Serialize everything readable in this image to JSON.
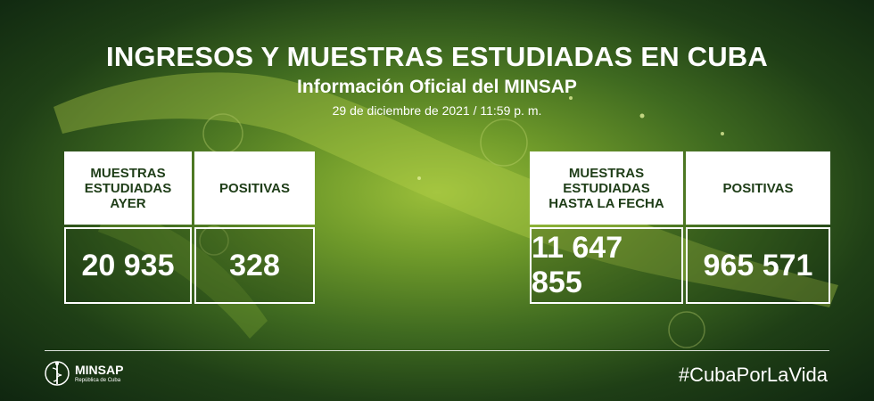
{
  "header": {
    "title": "INGRESOS Y MUESTRAS ESTUDIADAS EN CUBA",
    "subtitle": "Información Oficial del MINSAP",
    "date": "29 de diciembre de 2021 / 11:59 p. m."
  },
  "left_stats": [
    {
      "label": "MUESTRAS\nESTUDIADAS\nAYER",
      "value": "20 935"
    },
    {
      "label": "POSITIVAS",
      "value": "328"
    }
  ],
  "right_stats": [
    {
      "label": "MUESTRAS\nESTUDIADAS\nHASTA LA FECHA",
      "value": "11 647 855"
    },
    {
      "label": "POSITIVAS",
      "value": "965 571"
    }
  ],
  "footer": {
    "logo_name": "MINSAP",
    "logo_sub": "República de Cuba",
    "hashtag": "#CubaPorLaVida"
  },
  "colors": {
    "header_text": "#1e3d17",
    "background_center": "#9bbf3a",
    "background_edge": "#0f2610"
  }
}
